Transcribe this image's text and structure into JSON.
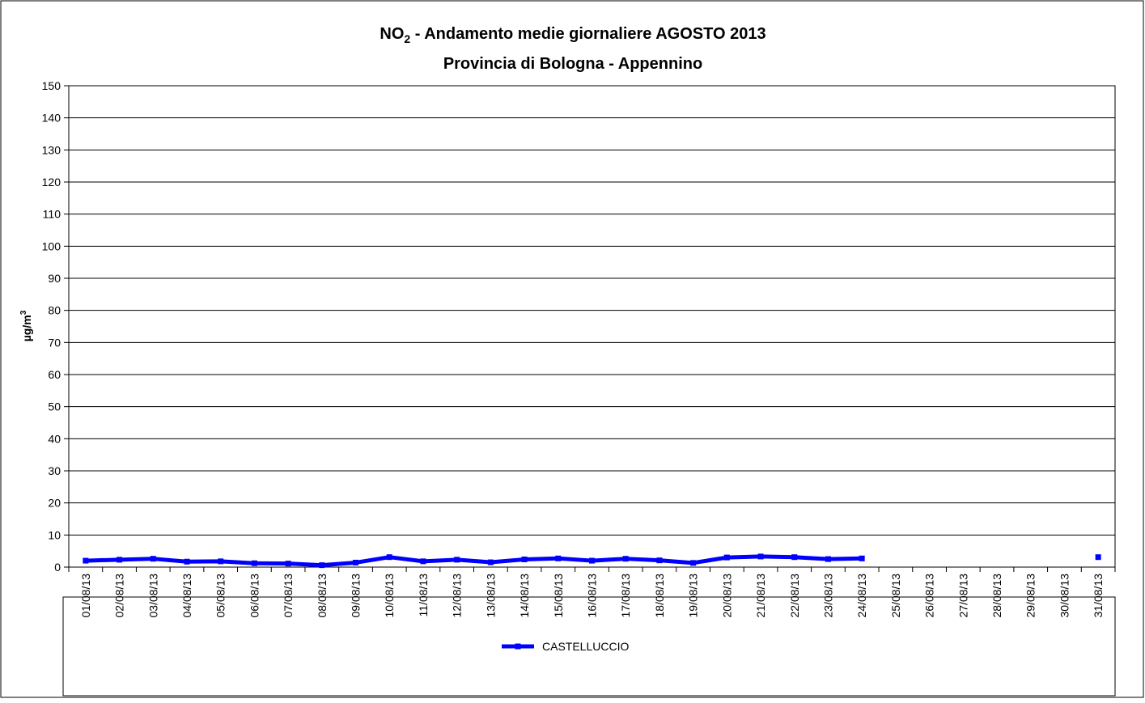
{
  "chart_data": {
    "type": "line",
    "title": {
      "main": "NO",
      "sub": "2",
      "rest": " - Andamento medie giornaliere AGOSTO 2013"
    },
    "subtitle": "Provincia di Bologna - Appennino",
    "y_label": {
      "main": "µg/m",
      "sup": "3"
    },
    "categories": [
      "01/08/13",
      "02/08/13",
      "03/08/13",
      "04/08/13",
      "05/08/13",
      "06/08/13",
      "07/08/13",
      "08/08/13",
      "09/08/13",
      "10/08/13",
      "11/08/13",
      "12/08/13",
      "13/08/13",
      "14/08/13",
      "15/08/13",
      "16/08/13",
      "17/08/13",
      "18/08/13",
      "19/08/13",
      "20/08/13",
      "21/08/13",
      "22/08/13",
      "23/08/13",
      "24/08/13",
      "25/08/13",
      "26/08/13",
      "27/08/13",
      "28/08/13",
      "29/08/13",
      "30/08/13",
      "31/08/13"
    ],
    "series": [
      {
        "name": "CASTELLUCCIO",
        "color": "#0000ff",
        "values": [
          2,
          2.3,
          2.6,
          1.7,
          1.8,
          1.2,
          1.1,
          0.6,
          1.4,
          3.1,
          1.8,
          2.3,
          1.5,
          2.4,
          2.7,
          2.0,
          2.6,
          2.1,
          1.3,
          3.0,
          3.3,
          3.1,
          2.5,
          2.7,
          null,
          null,
          null,
          null,
          null,
          null,
          3.1
        ]
      }
    ],
    "ylim": [
      0,
      150
    ],
    "yticks": [
      0,
      10,
      20,
      30,
      40,
      50,
      60,
      70,
      80,
      90,
      100,
      110,
      120,
      130,
      140,
      150
    ],
    "grid": true,
    "legend": "bottom"
  }
}
